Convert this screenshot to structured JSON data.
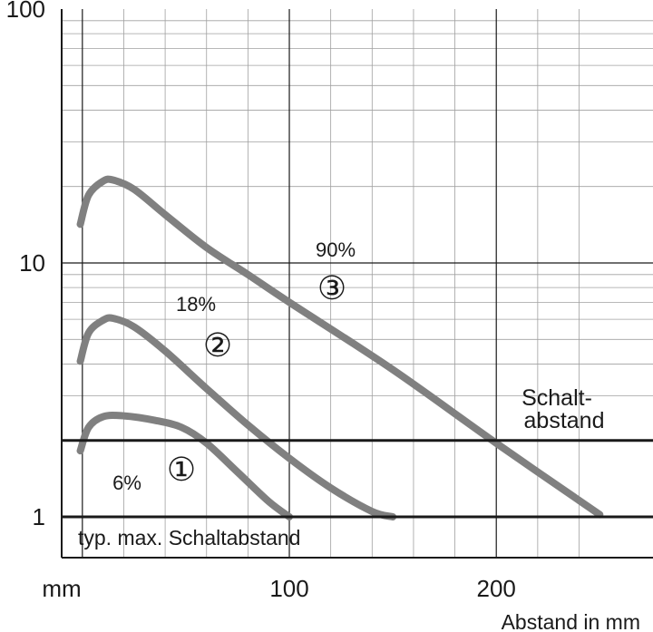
{
  "chart_data": {
    "type": "line",
    "y_scale": "log",
    "xlim": [
      -10,
      250
    ],
    "ylim": [
      1,
      100
    ],
    "x_ticks": [
      {
        "value": 100,
        "label": "100"
      },
      {
        "value": 200,
        "label": "200"
      }
    ],
    "x_unit_label": "mm",
    "y_ticks": [
      {
        "value": 1,
        "label": "1"
      },
      {
        "value": 10,
        "label": "10"
      },
      {
        "value": 100,
        "label": "100"
      }
    ],
    "xlabel": "Abstand in mm",
    "ylabel": "",
    "grid": true,
    "series": [
      {
        "id": "1",
        "marker": "①",
        "label": "6%",
        "points": [
          [
            -1,
            1.82
          ],
          [
            3,
            2.25
          ],
          [
            10,
            2.48
          ],
          [
            20,
            2.5
          ],
          [
            35,
            2.4
          ],
          [
            48,
            2.25
          ],
          [
            60,
            1.95
          ],
          [
            75,
            1.5
          ],
          [
            90,
            1.15
          ],
          [
            100,
            1.0
          ]
        ]
      },
      {
        "id": "2",
        "marker": "②",
        "label": "18%",
        "points": [
          [
            -1,
            4.1
          ],
          [
            3,
            5.3
          ],
          [
            10,
            5.95
          ],
          [
            15,
            6.05
          ],
          [
            25,
            5.6
          ],
          [
            40,
            4.5
          ],
          [
            60,
            3.2
          ],
          [
            80,
            2.3
          ],
          [
            100,
            1.7
          ],
          [
            120,
            1.3
          ],
          [
            140,
            1.05
          ],
          [
            150,
            1.0
          ]
        ]
      },
      {
        "id": "3",
        "marker": "③",
        "label": "90%",
        "points": [
          [
            -1,
            14.2
          ],
          [
            3,
            18.5
          ],
          [
            10,
            21.0
          ],
          [
            15,
            21.2
          ],
          [
            25,
            19.5
          ],
          [
            40,
            15.5
          ],
          [
            60,
            11.5
          ],
          [
            80,
            9.0
          ],
          [
            100,
            7.0
          ],
          [
            150,
            3.8
          ],
          [
            200,
            1.95
          ],
          [
            250,
            1.02
          ]
        ]
      }
    ],
    "reference_lines": [
      {
        "y": 2.0,
        "label": "Schalt-\nabstand",
        "label_lines": [
          "Schalt-",
          "abstand"
        ]
      },
      {
        "y": 1.0,
        "label": "typ. max. Schaltabstand"
      }
    ],
    "colors": {
      "curve": "#808080",
      "grid": "#a0a0a0",
      "axis": "#1a1a1a"
    }
  }
}
